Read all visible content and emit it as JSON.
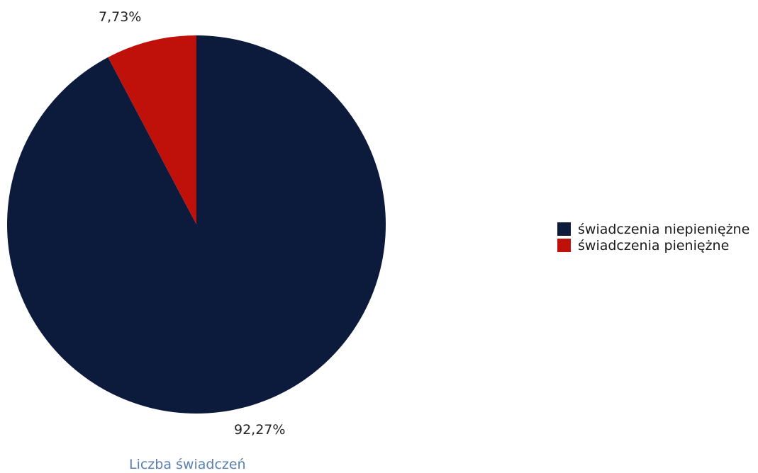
{
  "chart_data": {
    "type": "pie",
    "title": "Liczba świadczeń",
    "categories": [
      "świadczenia niepieniężne",
      "świadczenia pieniężne"
    ],
    "values": [
      92.27,
      7.73
    ],
    "value_labels": [
      "92,27%",
      "7,73%"
    ],
    "colors": [
      "#0c1a3c",
      "#c0100a"
    ],
    "legend_position": "right",
    "start_angle": "top, slice order counter-clockwise"
  }
}
